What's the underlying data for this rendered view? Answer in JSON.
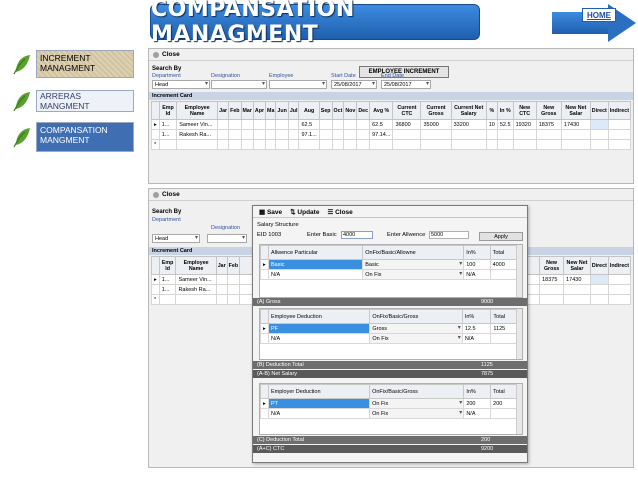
{
  "header": {
    "title": "COMPANSATION MANAGMENT",
    "home_label": "HOME"
  },
  "sidebar": {
    "items": [
      {
        "label": "INCREMENT MANAGMENT",
        "state": "hover"
      },
      {
        "label": "ARRERAS MANGMENT",
        "state": "normal"
      },
      {
        "label": "COMPANSATION MANGMENT",
        "state": "active"
      }
    ]
  },
  "increment_form": {
    "close_label": "Close",
    "title": "EMPLOYEE INCREMENT",
    "search_by": "Search By",
    "labels": {
      "department": "Department",
      "designation": "Designation",
      "employee": "Employee",
      "start_date": "Start Date",
      "end_date": "End Date"
    },
    "department_value": "Head",
    "start_date": "25/08/2017",
    "end_date": "25/08/2017",
    "card_label": "Increment Card",
    "columns": [
      "Emp Id",
      "Employee Name",
      "Jar",
      "Feb",
      "Mar",
      "Apr",
      "Ma",
      "Jun",
      "Jul",
      "Aug",
      "Sep",
      "Oct",
      "Nov",
      "Dec",
      "Avg %",
      "Current CTC",
      "Current Gross",
      "Current Net Salary",
      "%",
      "In %",
      "New CTC",
      "New Gross",
      "New Net Salar",
      "Direct",
      "Indirect"
    ],
    "rows": [
      {
        "marker": "▸",
        "id": "1...",
        "name": "Sameer Vin...",
        "aug": "62.5",
        "avg": "62.5",
        "ctc": "36800",
        "gross": "35000",
        "net": "33200",
        "pct": "10",
        "inpct": "52.5",
        "new_ctc": "19320",
        "new_gross": "18375",
        "new_net": "17430"
      },
      {
        "marker": "",
        "id": "1...",
        "name": "Rakesh Ra...",
        "aug": "97.1...",
        "avg": "97.14...",
        "ctc": "",
        "gross": "",
        "net": "",
        "pct": "",
        "inpct": "",
        "new_ctc": "",
        "new_gross": "",
        "new_net": ""
      },
      {
        "marker": "*",
        "id": "",
        "name": "",
        "aug": "",
        "avg": "",
        "ctc": "",
        "gross": "",
        "net": "",
        "pct": "",
        "inpct": "",
        "new_ctc": "",
        "new_gross": "",
        "new_net": ""
      }
    ]
  },
  "compensation_form": {
    "close_label": "Close",
    "search_by": "Search By",
    "labels": {
      "department": "Department",
      "designation": "Designation"
    },
    "department_value": "Head",
    "card_label": "Increment Card",
    "columns": [
      "Emp Id",
      "Employee Name",
      "Jar",
      "Feb"
    ],
    "right_columns": [
      "New Gross",
      "New Net Salar",
      "Direct",
      "Indirect"
    ],
    "rows": [
      {
        "marker": "▸",
        "id": "1...",
        "name": "Sameer Vin...",
        "new_gross": "18375",
        "new_net": "17430"
      },
      {
        "marker": "",
        "id": "1...",
        "name": "Rakesh Ra...",
        "new_gross": "",
        "new_net": ""
      },
      {
        "marker": "*",
        "id": "",
        "name": "",
        "new_gross": "",
        "new_net": ""
      }
    ]
  },
  "salary_popup": {
    "toolbar": {
      "save": "Save",
      "update": "Update",
      "close": "Close"
    },
    "title": "Salary Structure",
    "eid_label": "EID",
    "eid_value": "1003",
    "basic_label": "Enter Basic",
    "basic_value": "4000",
    "allowance_label": "Enter Allwence",
    "allowance_value": "5000",
    "apply_label": "Apply",
    "allowance_table": {
      "columns": [
        "Allwence Particular",
        "OnFix/Basic/Allowne",
        "In%",
        "Total"
      ],
      "rows": [
        {
          "marker": "▸",
          "particular": "Basic",
          "type": "Basic",
          "pct": "100",
          "total": "4000"
        },
        {
          "marker": "",
          "particular": "N/A",
          "type": "On Fix",
          "pct": "N/A",
          "total": ""
        }
      ]
    },
    "gross_label": "(A) Gross",
    "gross_value": "9000",
    "deduction_table": {
      "columns": [
        "Employee Deduction",
        "OnFix/Basic/Gross",
        "In%",
        "Total"
      ],
      "rows": [
        {
          "marker": "▸",
          "particular": "PF",
          "type": "Gross",
          "pct": "12.5",
          "total": "1125"
        },
        {
          "marker": "",
          "particular": "N/A",
          "type": "On Fix",
          "pct": "N/A",
          "total": ""
        }
      ]
    },
    "deduction_total_label": "(B) Deduction Total",
    "deduction_total_value": "1125",
    "net_label": "(A-B) Net Salary",
    "net_value": "7875",
    "employer_table": {
      "columns": [
        "Employer Deduction",
        "OnFix/Basic/Gross",
        "In%",
        "Total"
      ],
      "rows": [
        {
          "marker": "▸",
          "particular": "PT",
          "type": "On Fix",
          "pct": "200",
          "total": "200"
        },
        {
          "marker": "",
          "particular": "N/A",
          "type": "On Fix",
          "pct": "N/A",
          "total": ""
        }
      ]
    },
    "employer_total_label": "(C) Deduction Total",
    "employer_total_value": "200",
    "ctc_label": "(A+C) CTC",
    "ctc_value": "9200"
  },
  "colors": {
    "banner": "#2a6fc0",
    "active_nav": "#3f6fb2",
    "selection": "#3a8fe0"
  }
}
